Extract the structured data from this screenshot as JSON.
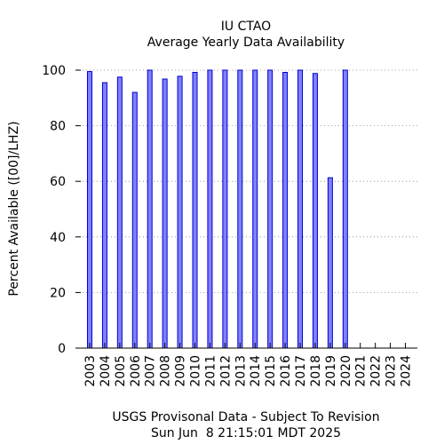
{
  "chart_data": {
    "type": "bar",
    "title": "IU CTAO",
    "subtitle": "Average Yearly Data Availability",
    "ylabel": "Percent Available ([00]/LHZ)",
    "xlabel": "USGS Provisonal Data - Subject To Revision",
    "footer": "Sun Jun  8 21:15:01 MDT 2025",
    "ylim": [
      0,
      100
    ],
    "yticks": [
      "0",
      "20",
      "40",
      "60",
      "80",
      "100"
    ],
    "grid": "horizontal dotted",
    "bar_color": "#8080ff",
    "bar_edge_color": "#0000cc",
    "categories": [
      "2003",
      "2004",
      "2005",
      "2006",
      "2007",
      "2008",
      "2009",
      "2010",
      "2011",
      "2012",
      "2013",
      "2014",
      "2015",
      "2016",
      "2017",
      "2018",
      "2019",
      "2020",
      "2021",
      "2022",
      "2023",
      "2024"
    ],
    "values": [
      99.5,
      95.5,
      97.5,
      92,
      100,
      96.8,
      97.8,
      99.2,
      100,
      100,
      100,
      100,
      100,
      99.2,
      100,
      98.8,
      61.3,
      100,
      null,
      null,
      null,
      null
    ]
  }
}
